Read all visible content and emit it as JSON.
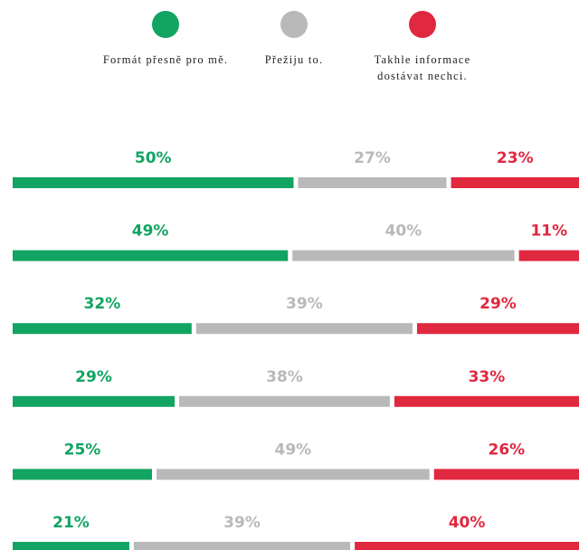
{
  "chart_data": {
    "type": "stacked-bar",
    "orientation": "horizontal",
    "xlim": [
      0,
      100
    ],
    "series": [
      {
        "name": "Formát přesně pro mě.",
        "color": "#12a462",
        "values": [
          50,
          49,
          32,
          29,
          25,
          21
        ],
        "value_labels": [
          "50%",
          "49%",
          "32%",
          "29%",
          "25%",
          "21%"
        ]
      },
      {
        "name": "Přežiju to.",
        "color": "#b9b9b9",
        "values": [
          27,
          40,
          39,
          38,
          49,
          39
        ],
        "value_labels": [
          "27%",
          "40%",
          "39%",
          "38%",
          "49%",
          "39%"
        ]
      },
      {
        "name": "Takhle informace dostávat nechci.",
        "color": "#e0283f",
        "values": [
          23,
          11,
          29,
          33,
          26,
          40
        ],
        "value_labels": [
          "23%",
          "11%",
          "29%",
          "33%",
          "26%",
          "40%"
        ]
      }
    ]
  }
}
